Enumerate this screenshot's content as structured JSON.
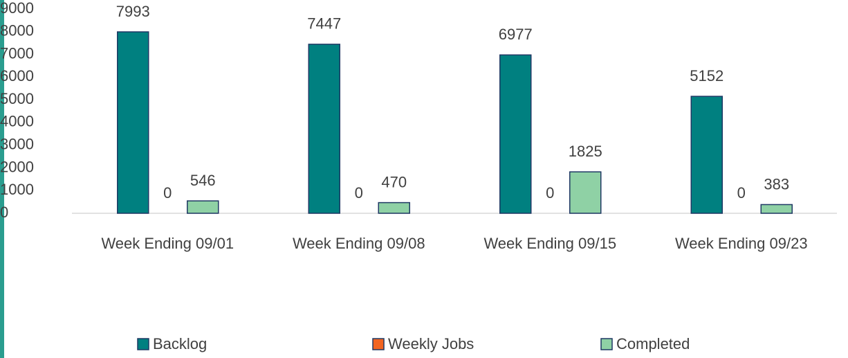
{
  "chart_data": {
    "type": "bar",
    "categories": [
      "Week Ending 09/01",
      "Week Ending 09/08",
      "Week Ending 09/15",
      "Week Ending 09/23"
    ],
    "series": [
      {
        "name": "Backlog",
        "color": "#008080",
        "values": [
          7993,
          7447,
          6977,
          5152
        ]
      },
      {
        "name": "Weekly Jobs",
        "color": "#f26522",
        "values": [
          0,
          0,
          0,
          0
        ]
      },
      {
        "name": "Completed",
        "color": "#8fd1a5",
        "values": [
          546,
          470,
          1825,
          383
        ]
      }
    ],
    "ylim": [
      0,
      9000
    ],
    "yticks": [
      0,
      1000,
      2000,
      3000,
      4000,
      5000,
      6000,
      7000,
      8000,
      9000
    ],
    "legend": "bottom"
  }
}
